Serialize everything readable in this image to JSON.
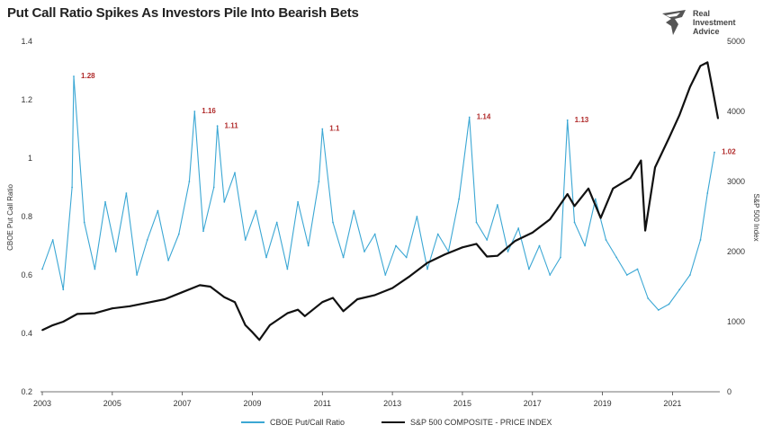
{
  "title": "Put Call Ratio Spikes As Investors Pile Into Bearish Bets",
  "logo": {
    "lines": [
      "Real",
      "Investment",
      "Advice"
    ]
  },
  "colors": {
    "put_call": "#3ba7d4",
    "sp500": "#111111",
    "annotation": "#b02a2a"
  },
  "chart_data": {
    "type": "line",
    "title": "Put Call Ratio Spikes As Investors Pile Into Bearish Bets",
    "x_range": [
      2003,
      2022.3
    ],
    "x_ticks": [
      "2003",
      "2005",
      "2007",
      "2009",
      "2011",
      "2013",
      "2015",
      "2017",
      "2019",
      "2021"
    ],
    "y_left": {
      "label": "CBOE Put Call Ratio",
      "range": [
        0.2,
        1.4
      ],
      "ticks": [
        "0.2",
        "0.4",
        "0.6",
        "0.8",
        "1",
        "1.2",
        "1.4"
      ]
    },
    "y_right": {
      "label": "S&P 500 Index",
      "range": [
        0,
        5000
      ],
      "ticks": [
        "0",
        "1000",
        "2000",
        "3000",
        "4000",
        "5000"
      ]
    },
    "grid": false,
    "legend_position": "bottom",
    "series": [
      {
        "name": "CBOE Put/Call Ratio",
        "axis": "left",
        "x": [
          2003.0,
          2003.3,
          2003.6,
          2003.85,
          2003.9,
          2004.2,
          2004.5,
          2004.8,
          2005.1,
          2005.4,
          2005.7,
          2006.0,
          2006.3,
          2006.6,
          2006.9,
          2007.2,
          2007.35,
          2007.6,
          2007.9,
          2008.0,
          2008.2,
          2008.5,
          2008.8,
          2009.1,
          2009.4,
          2009.7,
          2010.0,
          2010.3,
          2010.6,
          2010.9,
          2011.0,
          2011.3,
          2011.6,
          2011.9,
          2012.2,
          2012.5,
          2012.8,
          2013.1,
          2013.4,
          2013.7,
          2014.0,
          2014.3,
          2014.6,
          2014.9,
          2015.2,
          2015.4,
          2015.7,
          2016.0,
          2016.3,
          2016.6,
          2016.9,
          2017.2,
          2017.5,
          2017.8,
          2018.0,
          2018.2,
          2018.5,
          2018.8,
          2019.1,
          2019.4,
          2019.7,
          2020.0,
          2020.3,
          2020.6,
          2020.9,
          2021.2,
          2021.5,
          2021.8,
          2022.0,
          2022.2
        ],
        "y": [
          0.62,
          0.72,
          0.55,
          0.9,
          1.28,
          0.78,
          0.62,
          0.85,
          0.68,
          0.88,
          0.6,
          0.72,
          0.82,
          0.65,
          0.74,
          0.92,
          1.16,
          0.75,
          0.9,
          1.11,
          0.85,
          0.95,
          0.72,
          0.82,
          0.66,
          0.78,
          0.62,
          0.85,
          0.7,
          0.92,
          1.1,
          0.78,
          0.66,
          0.82,
          0.68,
          0.74,
          0.6,
          0.7,
          0.66,
          0.8,
          0.62,
          0.74,
          0.68,
          0.86,
          1.14,
          0.78,
          0.72,
          0.84,
          0.68,
          0.76,
          0.62,
          0.7,
          0.6,
          0.66,
          1.13,
          0.78,
          0.7,
          0.86,
          0.72,
          0.66,
          0.6,
          0.62,
          0.52,
          0.48,
          0.5,
          0.55,
          0.6,
          0.72,
          0.88,
          1.02
        ]
      },
      {
        "name": "S&P 500 COMPOSITE - PRICE INDEX",
        "axis": "right",
        "x": [
          2003.0,
          2003.3,
          2003.6,
          2004.0,
          2004.5,
          2005.0,
          2005.5,
          2006.0,
          2006.5,
          2007.0,
          2007.5,
          2007.8,
          2008.2,
          2008.5,
          2008.8,
          2009.0,
          2009.2,
          2009.5,
          2010.0,
          2010.3,
          2010.5,
          2011.0,
          2011.3,
          2011.6,
          2012.0,
          2012.5,
          2013.0,
          2013.5,
          2014.0,
          2014.5,
          2015.0,
          2015.4,
          2015.7,
          2016.0,
          2016.5,
          2017.0,
          2017.5,
          2018.0,
          2018.2,
          2018.6,
          2018.95,
          2019.3,
          2019.8,
          2020.1,
          2020.22,
          2020.5,
          2020.9,
          2021.2,
          2021.5,
          2021.8,
          2022.0,
          2022.15,
          2022.3
        ],
        "y": [
          880,
          950,
          1000,
          1110,
          1120,
          1190,
          1220,
          1270,
          1320,
          1420,
          1520,
          1500,
          1350,
          1280,
          950,
          850,
          740,
          950,
          1120,
          1170,
          1080,
          1280,
          1340,
          1150,
          1320,
          1380,
          1480,
          1650,
          1840,
          1960,
          2060,
          2110,
          1930,
          1940,
          2150,
          2270,
          2460,
          2820,
          2650,
          2900,
          2480,
          2900,
          3050,
          3300,
          2300,
          3200,
          3620,
          3950,
          4350,
          4650,
          4700,
          4300,
          3900
        ]
      }
    ],
    "annotations": [
      {
        "x": 2003.9,
        "y": 1.28,
        "label": "1.28"
      },
      {
        "x": 2007.35,
        "y": 1.16,
        "label": "1.16"
      },
      {
        "x": 2008.0,
        "y": 1.11,
        "label": "1.11"
      },
      {
        "x": 2011.0,
        "y": 1.1,
        "label": "1.1"
      },
      {
        "x": 2015.2,
        "y": 1.14,
        "label": "1.14"
      },
      {
        "x": 2018.0,
        "y": 1.13,
        "label": "1.13"
      },
      {
        "x": 2022.2,
        "y": 1.02,
        "label": "1.02"
      }
    ]
  }
}
